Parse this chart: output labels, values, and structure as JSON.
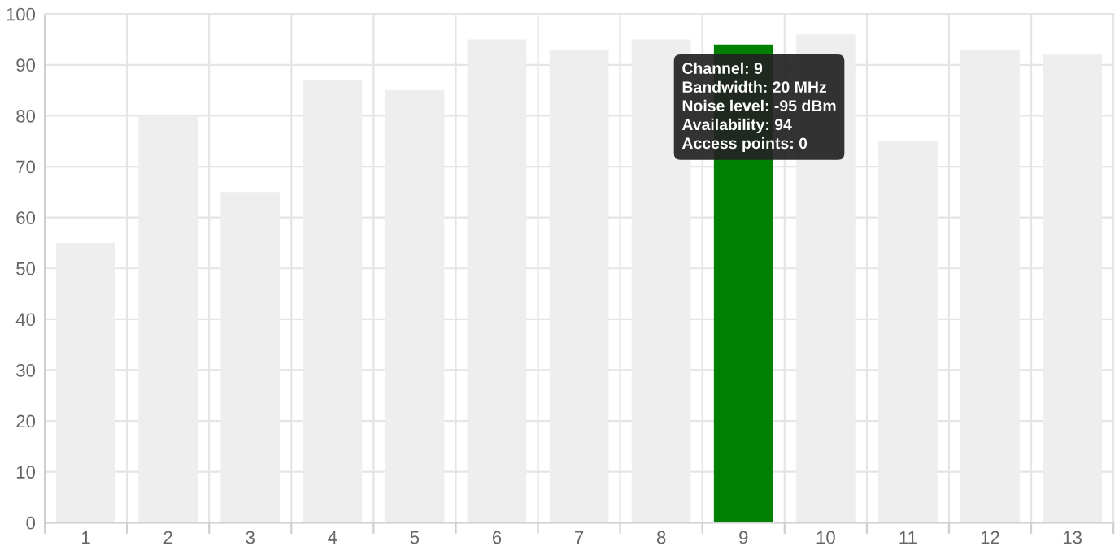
{
  "chart_data": {
    "type": "bar",
    "categories": [
      "1",
      "2",
      "3",
      "4",
      "5",
      "6",
      "7",
      "8",
      "9",
      "10",
      "11",
      "12",
      "13"
    ],
    "values": [
      55,
      80,
      65,
      87,
      85,
      95,
      93,
      95,
      94,
      96,
      75,
      93,
      92
    ],
    "colors": [
      "#eeeeee",
      "#eeeeee",
      "#eeeeee",
      "#eeeeee",
      "#eeeeee",
      "#eeeeee",
      "#eeeeee",
      "#eeeeee",
      "#008000",
      "#eeeeee",
      "#eeeeee",
      "#eeeeee",
      "#eeeeee"
    ],
    "ylim": [
      0,
      100
    ],
    "yticks": [
      0,
      10,
      20,
      30,
      40,
      50,
      60,
      70,
      80,
      90,
      100
    ],
    "grid": true,
    "annotations": [
      {
        "text": "Channel: 9\nBandwidth: 20 MHz\nNoise level: -95 dBm\nAvailability: 94\nAccess points: 0",
        "x": "9",
        "y": 94
      }
    ]
  }
}
